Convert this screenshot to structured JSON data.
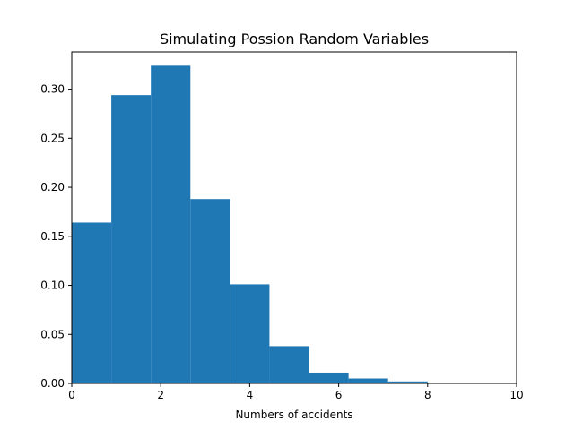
{
  "chart_data": {
    "type": "bar",
    "title": "Simulating Possion Random Variables",
    "xlabel": "Numbers of accidents",
    "ylabel": "",
    "xlim": [
      0,
      10
    ],
    "ylim": [
      0,
      0.338
    ],
    "xticks": [
      0,
      2,
      4,
      6,
      8,
      10
    ],
    "xtick_labels": [
      "0",
      "2",
      "4",
      "6",
      "8",
      "10"
    ],
    "yticks": [
      0,
      0.05,
      0.1,
      0.15,
      0.2,
      0.25,
      0.3
    ],
    "ytick_labels": [
      "0.00",
      "0.05",
      "0.10",
      "0.15",
      "0.20",
      "0.25",
      "0.30"
    ],
    "bins": [
      {
        "x0": 0.0,
        "x1": 0.889,
        "value": 0.164
      },
      {
        "x0": 0.889,
        "x1": 1.778,
        "value": 0.294
      },
      {
        "x0": 1.778,
        "x1": 2.667,
        "value": 0.324
      },
      {
        "x0": 2.667,
        "x1": 3.556,
        "value": 0.188
      },
      {
        "x0": 3.556,
        "x1": 4.444,
        "value": 0.101
      },
      {
        "x0": 4.444,
        "x1": 5.333,
        "value": 0.038
      },
      {
        "x0": 5.333,
        "x1": 6.222,
        "value": 0.011
      },
      {
        "x0": 6.222,
        "x1": 7.111,
        "value": 0.005
      },
      {
        "x0": 7.111,
        "x1": 8.0,
        "value": 0.002
      }
    ],
    "bar_color": "#1f77b4",
    "grid": false,
    "legend": "none"
  }
}
